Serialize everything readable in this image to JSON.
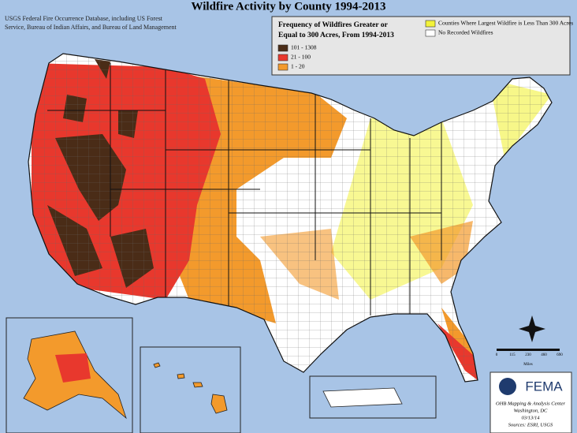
{
  "title": "Wildfire Activity by County 1994-2013",
  "source_lines": [
    "USGS Federal Fire Occurrence Database, including US Forest",
    "Service, Bureau of Indian Affairs, and Bureau of Land Management"
  ],
  "legend": {
    "title_lines": [
      "Frequency of Wildfires Greater or",
      "Equal to 300 Acres, From 1994-2013"
    ],
    "items": [
      {
        "label": "101 - 1308",
        "color": "#4a2c17"
      },
      {
        "label": "21 - 100",
        "color": "#e8382d"
      },
      {
        "label": "1 - 20",
        "color": "#f39a2c"
      },
      {
        "label": "Counties Where Largest Wildfire is Less Than 300 Acres",
        "color": "#f2f23a"
      },
      {
        "label": "No Recorded Wildfires",
        "color": "#ffffff"
      }
    ]
  },
  "scale": {
    "ticks": [
      "0",
      "115",
      "230",
      "460",
      "690"
    ],
    "unit": "Miles"
  },
  "fema": {
    "name": "FEMA",
    "lines": [
      "OHB Mapping & Analysis Center",
      "Washington, DC",
      "03/13/14",
      "Sources: ESRI, USGS"
    ]
  }
}
